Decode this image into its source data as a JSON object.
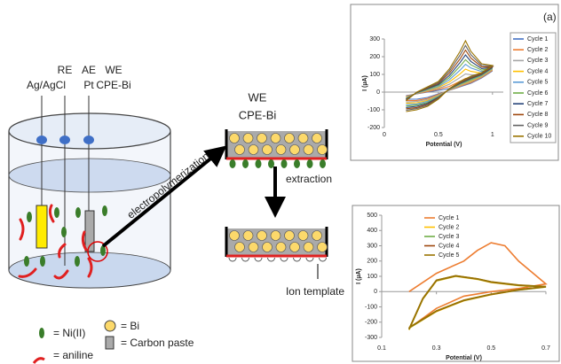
{
  "diagram": {
    "re": "RE",
    "re_sub": "Ag/AgCl",
    "ae": "AE",
    "ae_sub": "Pt",
    "we": "WE",
    "we_sub": "CPE-Bi",
    "arrow_label": "electropolymerization",
    "electrode_title": "WE",
    "electrode_sub": "CPE-Bi",
    "extraction": "extraction",
    "ion_template": "Ion template",
    "legend": {
      "ni": "= Ni(II)",
      "aniline": "= aniline",
      "bi": "= Bi",
      "paste": "= Carbon paste"
    }
  },
  "chart_data": [
    {
      "type": "line",
      "annotation": "(a)",
      "ylabel": "I (µA)",
      "xlabel": "Potential (V)",
      "xlim": [
        0,
        1.1
      ],
      "xticks": [
        0,
        0.5,
        1
      ],
      "ylim": [
        -200,
        300
      ],
      "yticks": [
        -200,
        -100,
        0,
        100,
        200,
        300
      ],
      "x": [
        0.2,
        0.3,
        0.4,
        0.5,
        0.6,
        0.7,
        0.75,
        0.8,
        0.9,
        1.0,
        0.9,
        0.8,
        0.7,
        0.6,
        0.5,
        0.4,
        0.3,
        0.2
      ],
      "series": [
        {
          "name": "Cycle 1",
          "color": "#4472c4",
          "values": [
            -20,
            -10,
            0,
            10,
            20,
            40,
            50,
            60,
            80,
            120,
            80,
            50,
            30,
            10,
            -10,
            -30,
            -40,
            -40
          ]
        },
        {
          "name": "Cycle 2",
          "color": "#ed7d31",
          "values": [
            -23,
            -9,
            3,
            16,
            32,
            61,
            77,
            79,
            89,
            123,
            83,
            54,
            33,
            11,
            -13,
            -36,
            -47,
            -48
          ]
        },
        {
          "name": "Cycle 3",
          "color": "#a5a5a5",
          "values": [
            -27,
            -8,
            7,
            21,
            44,
            82,
            103,
            98,
            98,
            127,
            87,
            59,
            37,
            12,
            -17,
            -41,
            -53,
            -56
          ]
        },
        {
          "name": "Cycle 4",
          "color": "#ffc000",
          "values": [
            -30,
            -7,
            10,
            27,
            57,
            103,
            130,
            117,
            107,
            130,
            90,
            63,
            40,
            13,
            -20,
            -47,
            -60,
            -63
          ]
        },
        {
          "name": "Cycle 5",
          "color": "#5b9bd5",
          "values": [
            -33,
            -6,
            13,
            32,
            69,
            124,
            157,
            136,
            116,
            133,
            93,
            68,
            43,
            14,
            -23,
            -52,
            -67,
            -71
          ]
        },
        {
          "name": "Cycle 6",
          "color": "#70ad47",
          "values": [
            -37,
            -4,
            17,
            38,
            81,
            146,
            183,
            154,
            124,
            137,
            97,
            72,
            47,
            16,
            -27,
            -58,
            -73,
            -79
          ]
        },
        {
          "name": "Cycle 7",
          "color": "#264478",
          "values": [
            -40,
            -3,
            20,
            43,
            93,
            167,
            210,
            173,
            133,
            140,
            100,
            77,
            50,
            17,
            -30,
            -63,
            -80,
            -87
          ]
        },
        {
          "name": "Cycle 8",
          "color": "#9e480e",
          "values": [
            -43,
            -2,
            23,
            49,
            106,
            188,
            237,
            192,
            142,
            143,
            103,
            81,
            53,
            18,
            -33,
            -69,
            -87,
            -94
          ]
        },
        {
          "name": "Cycle 9",
          "color": "#636363",
          "values": [
            -47,
            -1,
            27,
            54,
            118,
            209,
            263,
            211,
            151,
            147,
            107,
            86,
            57,
            19,
            -37,
            -74,
            -93,
            -102
          ]
        },
        {
          "name": "Cycle 10",
          "color": "#997300",
          "values": [
            -50,
            0,
            30,
            60,
            130,
            230,
            290,
            230,
            160,
            150,
            110,
            90,
            60,
            20,
            -40,
            -80,
            -100,
            -110
          ]
        }
      ]
    },
    {
      "type": "line",
      "ylabel": "I (µA)",
      "xlabel": "Potential (V)",
      "xlim": [
        0.1,
        0.7
      ],
      "xticks": [
        0.1,
        0.3,
        0.5,
        0.7
      ],
      "ylim": [
        -300,
        500
      ],
      "yticks": [
        -300,
        -200,
        -100,
        0,
        100,
        200,
        300,
        400,
        500
      ],
      "series": [
        {
          "name": "Cycle 1",
          "color": "#ed7d31",
          "x": [
            0.2,
            0.3,
            0.4,
            0.45,
            0.5,
            0.55,
            0.6,
            0.7,
            0.6,
            0.5,
            0.4,
            0.3,
            0.2
          ],
          "values": [
            0,
            120,
            200,
            270,
            320,
            300,
            200,
            50,
            20,
            0,
            -30,
            -110,
            -240
          ]
        },
        {
          "name": "Cycle 2",
          "color": "#ffc000",
          "x": [
            0.2,
            0.25,
            0.3,
            0.37,
            0.45,
            0.5,
            0.6,
            0.7,
            0.6,
            0.5,
            0.4,
            0.3,
            0.2
          ],
          "values": [
            -250,
            -50,
            70,
            100,
            80,
            60,
            40,
            30,
            10,
            -20,
            -60,
            -130,
            -240
          ]
        },
        {
          "name": "Cycle 3",
          "color": "#70ad47",
          "x": [
            0.2,
            0.25,
            0.3,
            0.37,
            0.45,
            0.5,
            0.6,
            0.7,
            0.6,
            0.5,
            0.4,
            0.3,
            0.2
          ],
          "values": [
            -248,
            -48,
            72,
            102,
            82,
            62,
            41,
            31,
            11,
            -19,
            -58,
            -128,
            -238
          ]
        },
        {
          "name": "Cycle 4",
          "color": "#9e480e",
          "x": [
            0.2,
            0.25,
            0.3,
            0.37,
            0.45,
            0.5,
            0.6,
            0.7,
            0.6,
            0.5,
            0.4,
            0.3,
            0.2
          ],
          "values": [
            -246,
            -46,
            74,
            103,
            83,
            63,
            42,
            32,
            12,
            -18,
            -57,
            -127,
            -236
          ]
        },
        {
          "name": "Cycle 5",
          "color": "#997300",
          "x": [
            0.2,
            0.25,
            0.3,
            0.37,
            0.45,
            0.5,
            0.6,
            0.7,
            0.6,
            0.5,
            0.4,
            0.3,
            0.2
          ],
          "values": [
            -245,
            -45,
            75,
            104,
            84,
            64,
            43,
            33,
            13,
            -17,
            -56,
            -126,
            -235
          ]
        }
      ]
    }
  ]
}
